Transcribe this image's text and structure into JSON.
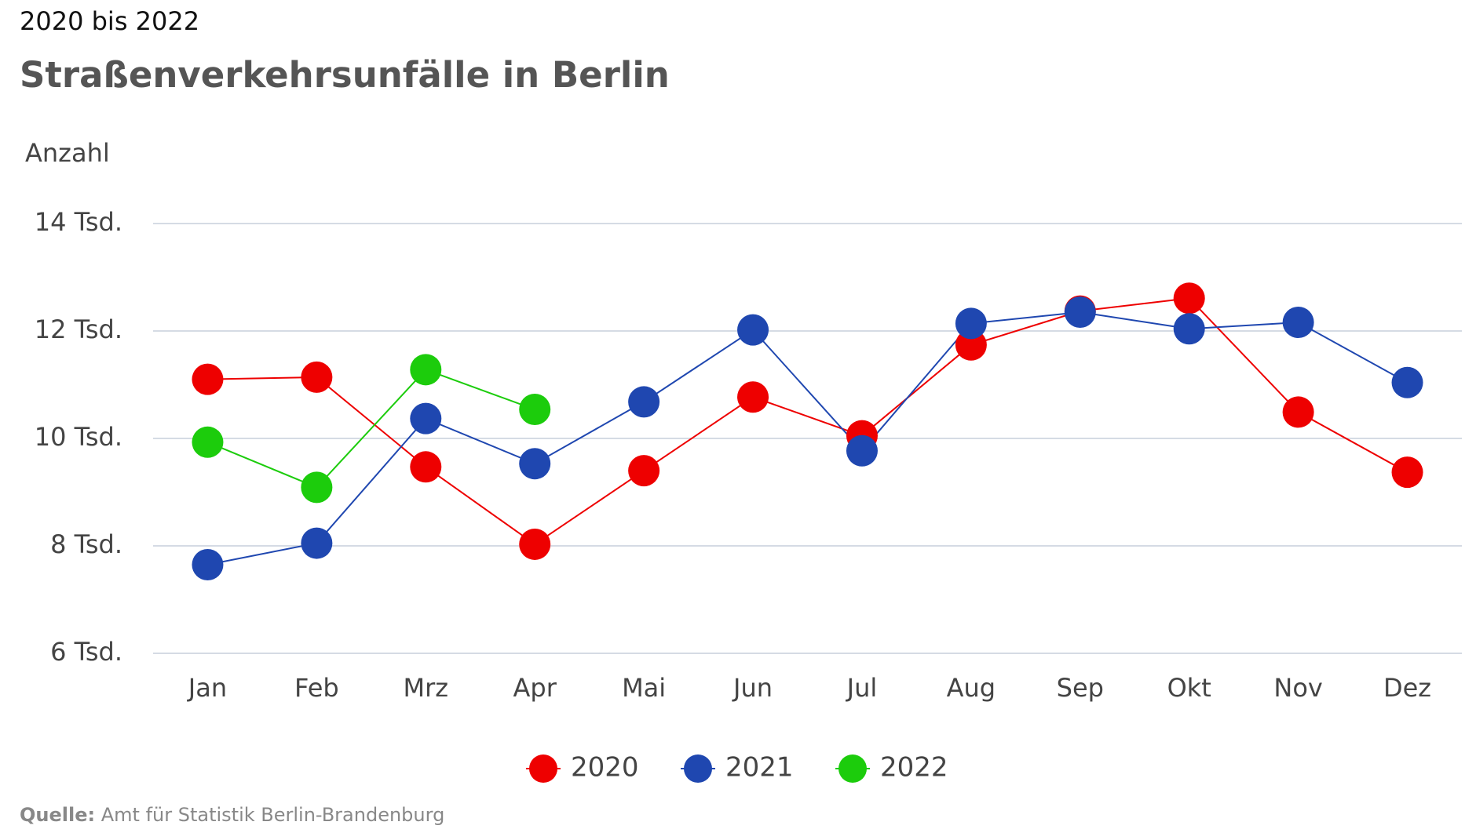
{
  "chart_data": {
    "type": "line",
    "subtitle": "2020 bis 2022",
    "title": "Straßenverkehrsunfälle in Berlin",
    "y_label": "Anzahl",
    "categories": [
      "Jan",
      "Feb",
      "Mrz",
      "Apr",
      "Mai",
      "Jun",
      "Jul",
      "Aug",
      "Sep",
      "Okt",
      "Nov",
      "Dez"
    ],
    "series": [
      {
        "name": "2020",
        "color": "#ee0000",
        "values": [
          11100,
          11140,
          9470,
          8030,
          9400,
          10770,
          10050,
          11740,
          12370,
          12610,
          10490,
          9370
        ]
      },
      {
        "name": "2021",
        "color": "#1f47b0",
        "values": [
          7650,
          8050,
          10370,
          9530,
          10680,
          12020,
          9770,
          12140,
          12350,
          12040,
          12160,
          11040
        ]
      },
      {
        "name": "2022",
        "color": "#1ccc0c",
        "values": [
          9930,
          9090,
          11280,
          10540,
          null,
          null,
          null,
          null,
          null,
          null,
          null,
          null
        ]
      }
    ],
    "ylim": [
      6000,
      14000
    ],
    "yticks": [
      {
        "value": 6000,
        "label": "6 Tsd."
      },
      {
        "value": 8000,
        "label": "8 Tsd."
      },
      {
        "value": 10000,
        "label": "10 Tsd."
      },
      {
        "value": 12000,
        "label": "12 Tsd."
      },
      {
        "value": 14000,
        "label": "14 Tsd."
      }
    ],
    "grid": true,
    "legend": "bottom",
    "source_label": "Quelle:",
    "source": "Amt für Statistik Berlin-Brandenburg"
  }
}
